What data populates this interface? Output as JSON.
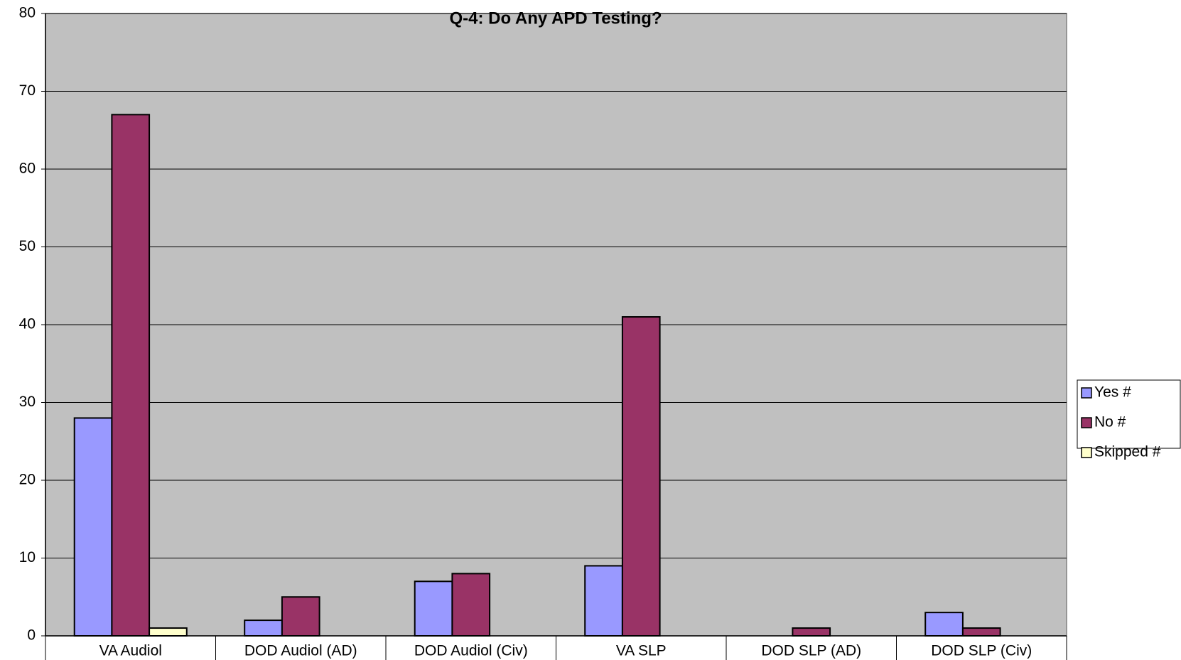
{
  "chart_data": {
    "type": "bar",
    "title": "Q-4:  Do Any APD Testing?",
    "categories": [
      "VA Audiol",
      "DOD Audiol (AD)",
      "DOD Audiol (Civ)",
      "VA SLP",
      "DOD SLP (AD)",
      "DOD SLP (Civ)"
    ],
    "series": [
      {
        "name": "Yes #",
        "color": "#9999ff",
        "values": [
          28,
          2,
          7,
          9,
          0,
          3
        ]
      },
      {
        "name": "No #",
        "color": "#993366",
        "values": [
          67,
          5,
          8,
          41,
          1,
          1
        ]
      },
      {
        "name": "Skipped #",
        "color": "#ffffcc",
        "values": [
          1,
          0,
          0,
          0,
          0,
          0
        ]
      }
    ],
    "ylim": [
      0,
      80
    ],
    "yticks": [
      0,
      10,
      20,
      30,
      40,
      50,
      60,
      70,
      80
    ],
    "grid": true,
    "legend": "right"
  }
}
